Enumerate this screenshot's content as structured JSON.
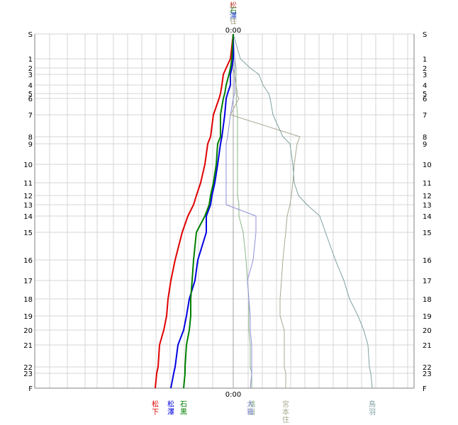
{
  "chart_data": {
    "type": "line",
    "time_labels": {
      "top": "0:00",
      "bottom": "0:00"
    },
    "y_start_label": "S",
    "y_end_label": "F",
    "station_ticks": [
      "1",
      "2",
      "3",
      "4",
      "5",
      "6",
      "7",
      "8",
      "9",
      "10",
      "11",
      "12",
      "13",
      "14",
      "15",
      "16",
      "17",
      "18",
      "19",
      "20",
      "21",
      "22",
      "23"
    ],
    "top_glyphs": [
      {
        "text": "松",
        "color": "#c0392b"
      },
      {
        "text": "石",
        "color": "#1e7a1e"
      },
      {
        "text": "澤",
        "color": "#1f3fbf"
      },
      {
        "text": "住",
        "color": "#9a9a7a"
      }
    ],
    "series": [
      {
        "name": "松下",
        "color": "#e00000",
        "bold": true,
        "values": [
          0,
          -2,
          -5,
          -7,
          -8,
          -9,
          -10,
          -14,
          -16,
          -18,
          -20,
          -23,
          -26,
          -28,
          -32,
          -36,
          -41,
          -44,
          -46,
          -47,
          -49,
          -52,
          -53,
          -54,
          -55
        ]
      },
      {
        "name": "松澤",
        "color": "#0000e0",
        "bold": true,
        "values": [
          0,
          0,
          -1,
          -2,
          -2,
          -4,
          -5,
          -6,
          -8,
          -9,
          -11,
          -13,
          -15,
          -16,
          -19,
          -19,
          -25,
          -27,
          -31,
          -33,
          -35,
          -39,
          -41,
          -42,
          -44
        ]
      },
      {
        "name": "石黒",
        "color": "#008000",
        "bold": true,
        "values": [
          0,
          -1,
          -2,
          -3,
          -5,
          -6,
          -7,
          -9,
          -9,
          -11,
          -12,
          -14,
          -16,
          -17,
          -20,
          -26,
          -28,
          -29,
          -30,
          -30,
          -31,
          -33,
          -34,
          -34,
          -35
        ]
      },
      {
        "name": "福田",
        "color": "#8ab48a",
        "bold": false,
        "values": [
          0,
          1,
          2,
          2,
          2,
          3,
          2,
          3,
          3,
          3,
          3,
          3,
          3,
          4,
          4,
          7,
          9,
          10,
          11,
          11,
          11,
          12,
          12,
          13,
          13
        ]
      },
      {
        "name": "大箱",
        "color": "#9090d8",
        "bold": false,
        "values": [
          0,
          1,
          1,
          1,
          1,
          1,
          0,
          -2,
          -4,
          -5,
          -5,
          -5,
          -5,
          -5,
          16,
          16,
          14,
          10,
          11,
          12,
          12,
          13,
          13,
          13,
          12
        ]
      },
      {
        "name": "宮本住",
        "color": "#a8a890",
        "bold": false,
        "values": [
          0,
          0,
          0,
          1,
          2,
          2,
          4,
          -2,
          47,
          45,
          43,
          42,
          41,
          40,
          38,
          37,
          35,
          34,
          33,
          33,
          36,
          36,
          36,
          37,
          37
        ]
      },
      {
        "name": "鳥羽",
        "color": "#7fa0a0",
        "bold": false,
        "values": [
          0,
          5,
          12,
          18,
          21,
          25,
          26,
          28,
          35,
          40,
          42,
          43,
          46,
          52,
          61,
          65,
          72,
          78,
          82,
          88,
          92,
          95,
          96,
          97,
          98
        ]
      }
    ],
    "bottom_labels": [
      {
        "text": "松下",
        "color": "#e00000"
      },
      {
        "text": "松澤",
        "color": "#0000e0"
      },
      {
        "text": "石黒",
        "color": "#008000"
      },
      {
        "text": "福田",
        "color": "#8ab48a"
      },
      {
        "text": "大箱",
        "color": "#9090d8"
      },
      {
        "text": "宮本住",
        "color": "#a8a890"
      },
      {
        "text": "鳥羽",
        "color": "#7fa0a0"
      }
    ]
  }
}
